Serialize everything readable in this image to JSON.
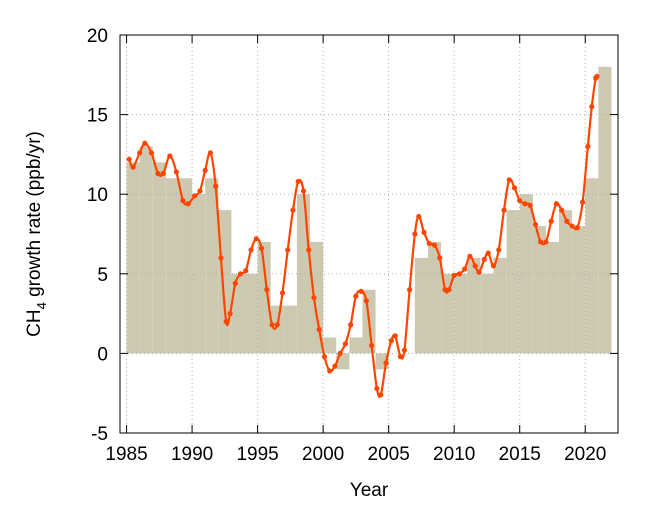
{
  "chart_data": {
    "type": "combo",
    "xlabel": "Year",
    "ylabel": [
      "CH",
      "4",
      " growth rate (ppb/yr)"
    ],
    "xlim": [
      1984.5,
      2022.5
    ],
    "ylim": [
      -5,
      20
    ],
    "xticks": [
      1985,
      1990,
      1995,
      2000,
      2005,
      2010,
      2015,
      2020
    ],
    "yticks": [
      -5,
      0,
      5,
      10,
      15,
      20
    ],
    "grid": true,
    "bars": {
      "color": "#cdc9b0",
      "x": [
        1985,
        1986,
        1987,
        1988,
        1989,
        1990,
        1991,
        1992,
        1993,
        1994,
        1995,
        1996,
        1997,
        1998,
        1999,
        2000,
        2001,
        2002,
        2003,
        2004,
        2005,
        2006,
        2007,
        2008,
        2009,
        2010,
        2011,
        2012,
        2013,
        2014,
        2015,
        2016,
        2017,
        2018,
        2019,
        2020,
        2021
      ],
      "values": [
        12,
        13,
        12,
        11,
        11,
        10,
        11,
        9,
        5,
        5,
        7,
        3,
        3,
        10,
        7,
        1,
        -1,
        1,
        4,
        -1,
        0,
        0,
        6,
        7,
        5,
        5,
        6,
        5,
        6,
        9,
        10,
        8,
        7,
        9,
        8,
        11,
        18
      ]
    },
    "line": {
      "color": "#ff4500",
      "x": [
        1985.2,
        1985.5,
        1986.0,
        1986.4,
        1986.9,
        1987.4,
        1987.8,
        1988.3,
        1988.8,
        1989.3,
        1989.7,
        1990.2,
        1990.6,
        1991.0,
        1991.4,
        1991.8,
        1992.2,
        1992.6,
        1992.9,
        1993.3,
        1993.7,
        1994.1,
        1994.5,
        1994.9,
        1995.3,
        1995.7,
        1996.1,
        1996.5,
        1996.9,
        1997.3,
        1997.7,
        1998.1,
        1998.5,
        1998.9,
        1999.3,
        1999.7,
        2000.1,
        2000.5,
        2000.9,
        2001.3,
        2001.7,
        2002.1,
        2002.5,
        2002.9,
        2003.3,
        2003.7,
        2004.1,
        2004.4,
        2004.8,
        2005.2,
        2005.5,
        2005.9,
        2006.2,
        2006.6,
        2007.0,
        2007.3,
        2007.7,
        2008.1,
        2008.5,
        2008.9,
        2009.3,
        2009.6,
        2010.0,
        2010.4,
        2010.8,
        2011.2,
        2011.6,
        2011.9,
        2012.3,
        2012.6,
        2013.0,
        2013.4,
        2013.8,
        2014.2,
        2014.6,
        2015.0,
        2015.4,
        2015.8,
        2016.2,
        2016.6,
        2017.0,
        2017.4,
        2017.8,
        2018.2,
        2018.6,
        2019.0,
        2019.4,
        2019.8,
        2020.2,
        2020.5,
        2020.8,
        2020.9
      ],
      "values": [
        12.2,
        11.7,
        12.6,
        13.2,
        12.6,
        11.3,
        11.3,
        12.4,
        11.4,
        9.6,
        9.4,
        9.9,
        10.2,
        11.5,
        12.6,
        10.5,
        6.0,
        2.0,
        2.5,
        4.4,
        5.0,
        5.2,
        6.5,
        7.2,
        6.6,
        4.0,
        1.8,
        1.8,
        3.8,
        6.5,
        9.0,
        10.8,
        10.2,
        6.5,
        3.5,
        1.5,
        -0.2,
        -1.1,
        -0.8,
        0.0,
        0.6,
        1.8,
        3.6,
        3.9,
        3.3,
        0.5,
        -2.2,
        -2.6,
        -0.6,
        0.8,
        1.1,
        -0.2,
        0.2,
        4.0,
        7.5,
        8.6,
        7.6,
        6.9,
        6.8,
        6.0,
        4.0,
        4.0,
        4.9,
        5.0,
        5.3,
        6.1,
        5.5,
        5.1,
        5.9,
        6.3,
        5.5,
        6.5,
        9.0,
        10.9,
        10.4,
        9.6,
        9.4,
        9.3,
        8.1,
        7.0,
        7.0,
        8.3,
        9.4,
        9.0,
        8.3,
        8.0,
        7.9,
        9.5,
        13.0,
        15.5,
        17.3,
        17.4
      ]
    }
  }
}
